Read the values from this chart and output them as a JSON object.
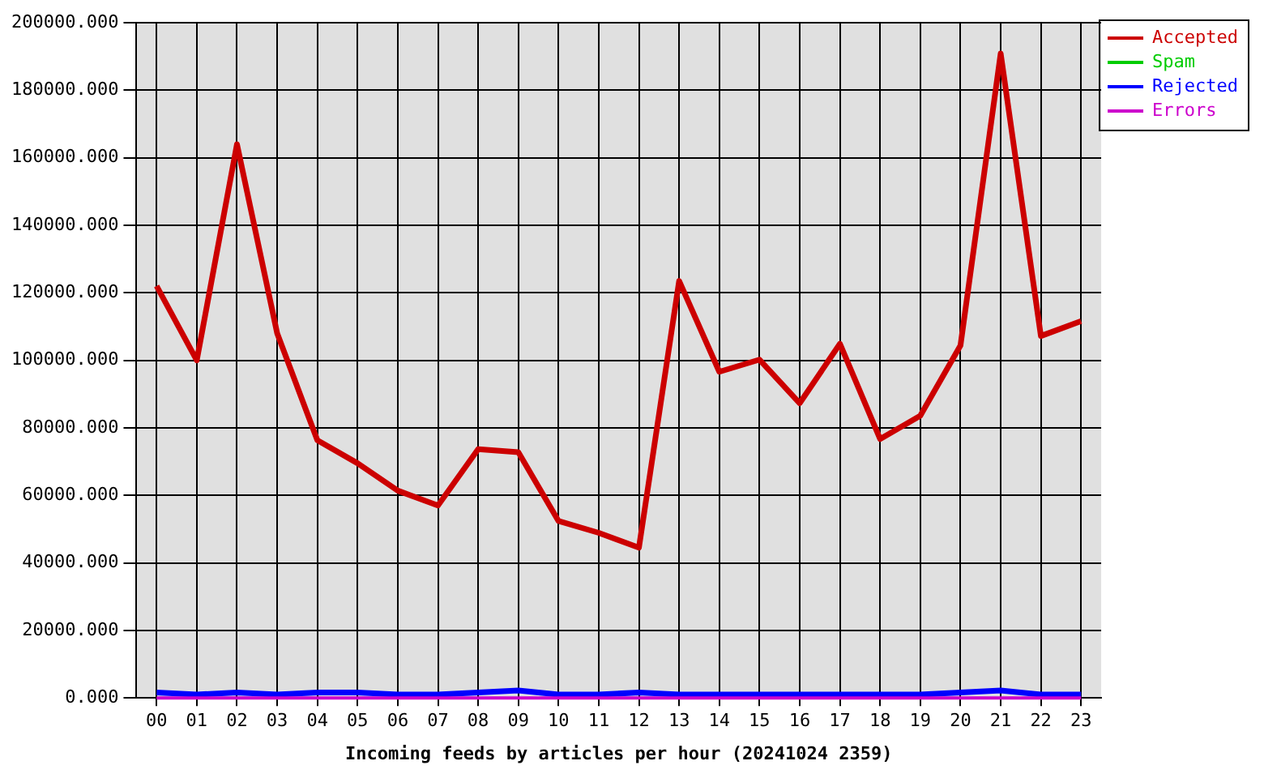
{
  "chart_data": {
    "type": "line",
    "xlabel": "Incoming feeds by articles per hour (20241024 2359)",
    "categories": [
      "00",
      "01",
      "02",
      "03",
      "04",
      "05",
      "06",
      "07",
      "08",
      "09",
      "10",
      "11",
      "12",
      "13",
      "14",
      "15",
      "16",
      "17",
      "18",
      "19",
      "20",
      "21",
      "22",
      "23"
    ],
    "series": [
      {
        "name": "Accepted",
        "color": "#cc0000",
        "values": [
          122000,
          100000,
          164000,
          108000,
          76300,
          69500,
          61400,
          57000,
          73700,
          72800,
          52400,
          48900,
          44500,
          123500,
          96600,
          100200,
          87300,
          104900,
          76700,
          83600,
          104400,
          190900,
          107200,
          111600
        ]
      },
      {
        "name": "Spam",
        "color": "#00cc00",
        "values": [
          null,
          null,
          null,
          null,
          null,
          null,
          null,
          null,
          null,
          null,
          null,
          null,
          null,
          null,
          null,
          null,
          null,
          null,
          null,
          null,
          null,
          null,
          null,
          null
        ]
      },
      {
        "name": "Rejected",
        "color": "#0000ff",
        "values": [
          1600,
          1000,
          1600,
          1000,
          1600,
          1600,
          1000,
          1000,
          1600,
          2200,
          1000,
          1000,
          1600,
          1000,
          1000,
          1000,
          1000,
          1000,
          1000,
          1000,
          1600,
          2200,
          1000,
          1000
        ]
      },
      {
        "name": "Errors",
        "color": "#cc00cc",
        "values": [
          0,
          0,
          0,
          0,
          0,
          0,
          0,
          0,
          0,
          0,
          0,
          0,
          0,
          0,
          0,
          0,
          0,
          0,
          0,
          0,
          0,
          0,
          0,
          0
        ]
      }
    ],
    "ylim": [
      0,
      200000
    ],
    "yticks": [
      {
        "value": 0,
        "label": "0.000"
      },
      {
        "value": 20000,
        "label": "20000.000"
      },
      {
        "value": 40000,
        "label": "40000.000"
      },
      {
        "value": 60000,
        "label": "60000.000"
      },
      {
        "value": 80000,
        "label": "80000.000"
      },
      {
        "value": 100000,
        "label": "100000.000"
      },
      {
        "value": 120000,
        "label": "120000.000"
      },
      {
        "value": 140000,
        "label": "140000.000"
      },
      {
        "value": 160000,
        "label": "160000.000"
      },
      {
        "value": 180000,
        "label": "180000.000"
      },
      {
        "value": 200000,
        "label": "200000.000"
      }
    ],
    "grid": true,
    "legend": "top right"
  }
}
